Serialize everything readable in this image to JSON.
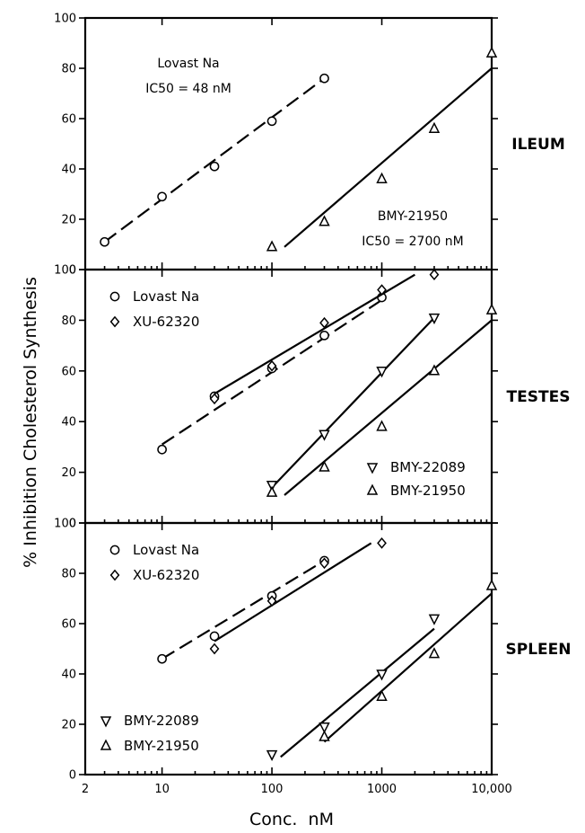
{
  "axis": {
    "ylabel": "% Inhibition Cholesterol Synthesis",
    "xlabel": "Conc.  nM"
  },
  "chart_data": {
    "type": "scatter",
    "x_scale": "log",
    "xlim": [
      2,
      10000
    ],
    "x_ticks": [
      {
        "value": 2,
        "label": "2"
      },
      {
        "value": 10,
        "label": "10"
      },
      {
        "value": 100,
        "label": "100"
      },
      {
        "value": 1000,
        "label": "1000"
      },
      {
        "value": 10000,
        "label": "10,000"
      }
    ],
    "ylim": [
      0,
      100
    ],
    "y_ticks": [
      0,
      20,
      40,
      60,
      80,
      100
    ],
    "panels": [
      {
        "id": "ileum",
        "label": "ILEUM",
        "annotations": [
          {
            "id": "lovast",
            "lines": [
              "Lovast Na",
              "IC50 = 48 nM"
            ]
          },
          {
            "id": "bmy21950",
            "lines": [
              "BMY-21950",
              "IC50 = 2700 nM"
            ]
          }
        ],
        "legend": [],
        "series": [
          {
            "name": "Lovast Na",
            "marker": "circle",
            "line": "dashed",
            "x": [
              3,
              10,
              30,
              100,
              300
            ],
            "y": [
              11,
              29,
              41,
              59,
              76
            ],
            "fit": {
              "x": [
                3,
                300
              ],
              "y": [
                11,
                76
              ]
            }
          },
          {
            "name": "BMY-21950",
            "marker": "triangle-up",
            "line": "solid",
            "x": [
              100,
              300,
              1000,
              3000,
              10000
            ],
            "y": [
              9,
              19,
              36,
              56,
              86
            ],
            "fit": {
              "x": [
                130,
                10000
              ],
              "y": [
                9,
                80
              ]
            }
          }
        ]
      },
      {
        "id": "testes",
        "label": "TESTES",
        "annotations": [],
        "legend": [
          {
            "marker": "circle",
            "name": "Lovast Na",
            "corner": "top-left"
          },
          {
            "marker": "diamond",
            "name": "XU-62320",
            "corner": "top-left"
          },
          {
            "marker": "triangle-down",
            "name": "BMY-22089",
            "corner": "bottom-right"
          },
          {
            "marker": "triangle-up",
            "name": "BMY-21950",
            "corner": "bottom-right"
          }
        ],
        "series": [
          {
            "name": "Lovast Na",
            "marker": "circle",
            "line": "dashed",
            "x": [
              10,
              30,
              100,
              300,
              1000
            ],
            "y": [
              29,
              50,
              61,
              74,
              89
            ],
            "fit": {
              "x": [
                10,
                1000
              ],
              "y": [
                31,
                88
              ]
            }
          },
          {
            "name": "XU-62320",
            "marker": "diamond",
            "line": "solid",
            "x": [
              30,
              100,
              300,
              1000,
              3000
            ],
            "y": [
              49,
              62,
              79,
              92,
              98
            ],
            "fit": {
              "x": [
                30,
                2000
              ],
              "y": [
                51,
                98
              ]
            }
          },
          {
            "name": "BMY-22089",
            "marker": "triangle-down",
            "line": "solid",
            "x": [
              100,
              300,
              1000,
              3000
            ],
            "y": [
              15,
              35,
              60,
              81
            ],
            "fit": {
              "x": [
                100,
                3000
              ],
              "y": [
                14,
                81
              ]
            }
          },
          {
            "name": "BMY-21950",
            "marker": "triangle-up",
            "line": "solid",
            "x": [
              100,
              300,
              1000,
              3000,
              10000
            ],
            "y": [
              12,
              22,
              38,
              60,
              84
            ],
            "fit": {
              "x": [
                130,
                10000
              ],
              "y": [
                11,
                80
              ]
            }
          }
        ]
      },
      {
        "id": "spleen",
        "label": "SPLEEN",
        "annotations": [],
        "legend": [
          {
            "marker": "circle",
            "name": "Lovast Na",
            "corner": "top-left"
          },
          {
            "marker": "diamond",
            "name": "XU-62320",
            "corner": "top-left"
          },
          {
            "marker": "triangle-down",
            "name": "BMY-22089",
            "corner": "bottom-left"
          },
          {
            "marker": "triangle-up",
            "name": "BMY-21950",
            "corner": "bottom-left"
          }
        ],
        "series": [
          {
            "name": "Lovast Na",
            "marker": "circle",
            "line": "dashed",
            "x": [
              10,
              30,
              100,
              300
            ],
            "y": [
              46,
              55,
              71,
              85
            ],
            "fit": {
              "x": [
                10,
                300
              ],
              "y": [
                46,
                85
              ]
            }
          },
          {
            "name": "XU-62320",
            "marker": "diamond",
            "line": "solid",
            "x": [
              30,
              100,
              300,
              1000
            ],
            "y": [
              50,
              69,
              84,
              92
            ],
            "fit": {
              "x": [
                30,
                800
              ],
              "y": [
                53,
                92
              ]
            }
          },
          {
            "name": "BMY-22089",
            "marker": "triangle-down",
            "line": "solid",
            "x": [
              100,
              300,
              1000,
              3000
            ],
            "y": [
              8,
              19,
              40,
              62
            ],
            "fit": {
              "x": [
                120,
                3000
              ],
              "y": [
                7,
                58
              ]
            }
          },
          {
            "name": "BMY-21950",
            "marker": "triangle-up",
            "line": "solid",
            "x": [
              300,
              1000,
              3000,
              10000
            ],
            "y": [
              15,
              31,
              48,
              75
            ],
            "fit": {
              "x": [
                300,
                10000
              ],
              "y": [
                13,
                72
              ]
            }
          }
        ]
      }
    ]
  }
}
